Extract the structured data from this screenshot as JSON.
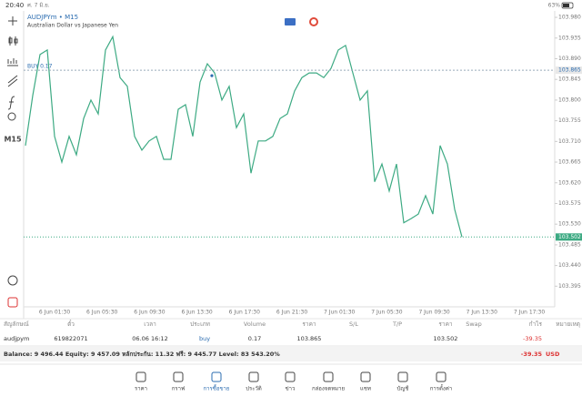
{
  "status_bar": {
    "time": "20:40",
    "date": "ศ. 7 มิ.ย.",
    "battery": "63%"
  },
  "toolbar": {
    "timeframe": "M15"
  },
  "chart_data": {
    "type": "line",
    "title": "AUDJPYm • M15",
    "subtitle": "Australian Dollar vs Japanese Yen",
    "color": "#3daa83",
    "ylim": [
      103.354,
      103.994
    ],
    "yticks": [
      {
        "value": 103.98,
        "label": "103.980"
      },
      {
        "value": 103.935,
        "label": "103.935"
      },
      {
        "value": 103.89,
        "label": "103.890"
      },
      {
        "value": 103.845,
        "label": "103.845"
      },
      {
        "value": 103.8,
        "label": "103.800"
      },
      {
        "value": 103.755,
        "label": "103.755"
      },
      {
        "value": 103.71,
        "label": "103.710"
      },
      {
        "value": 103.665,
        "label": "103.665"
      },
      {
        "value": 103.62,
        "label": "103.620"
      },
      {
        "value": 103.575,
        "label": "103.575"
      },
      {
        "value": 103.53,
        "label": "103.530"
      },
      {
        "value": 103.485,
        "label": "103.485"
      },
      {
        "value": 103.44,
        "label": "103.440"
      },
      {
        "value": 103.395,
        "label": "103.395"
      }
    ],
    "time_labels": [
      "6 Jun 01:30",
      "6 Jun 05:30",
      "6 Jun 09:30",
      "6 Jun 13:30",
      "6 Jun 17:30",
      "6 Jun 21:30",
      "7 Jun 01:30",
      "7 Jun 05:30",
      "7 Jun 09:30",
      "7 Jun 13:30",
      "7 Jun 17:30"
    ],
    "values": [
      103.701,
      103.81,
      103.899,
      103.909,
      103.721,
      103.665,
      103.721,
      103.681,
      103.76,
      103.8,
      103.77,
      103.909,
      103.938,
      103.849,
      103.83,
      103.721,
      103.691,
      103.711,
      103.721,
      103.671,
      103.671,
      103.78,
      103.79,
      103.721,
      103.839,
      103.879,
      103.859,
      103.8,
      103.83,
      103.74,
      103.77,
      103.641,
      103.711,
      103.711,
      103.721,
      103.76,
      103.77,
      103.82,
      103.849,
      103.859,
      103.859,
      103.849,
      103.869,
      103.909,
      103.919,
      103.859,
      103.8,
      103.82,
      103.622,
      103.661,
      103.602,
      103.661,
      103.533,
      103.542,
      103.552,
      103.592,
      103.552,
      103.701,
      103.661,
      103.562,
      103.502
    ],
    "buy_line": {
      "label": "BUY 0.17",
      "value": 103.865,
      "price_label": "103.865"
    },
    "bid_line": {
      "value": 103.502,
      "price_label": "103.502"
    }
  },
  "table": {
    "headers": [
      "สัญลักษณ์",
      "ตั๋ว",
      "เวลา",
      "ประเภท",
      "Volume",
      "ราคา",
      "S/L",
      "T/P",
      "ราคา",
      "Swap",
      "กำไร",
      "หมายเหตุ"
    ],
    "row": [
      "audjpym",
      "619822071",
      "06.06 16:12",
      "buy",
      "0.17",
      "103.865",
      "103.502",
      "-39.35"
    ]
  },
  "balance": {
    "text": "Balance: 9 496.44 Equity: 9 457.09 หลักประกัน: 11.32 ฟรี: 9 445.77 Level: 83 543.20%",
    "profit": "-39.35",
    "currency": "USD"
  },
  "nav": [
    "ราคา",
    "กราฟ",
    "การซื้อขาย",
    "ประวัติ",
    "ข่าว",
    "กล่องจดหมาย",
    "แชท",
    "บัญชี",
    "การตั้งค่า"
  ]
}
